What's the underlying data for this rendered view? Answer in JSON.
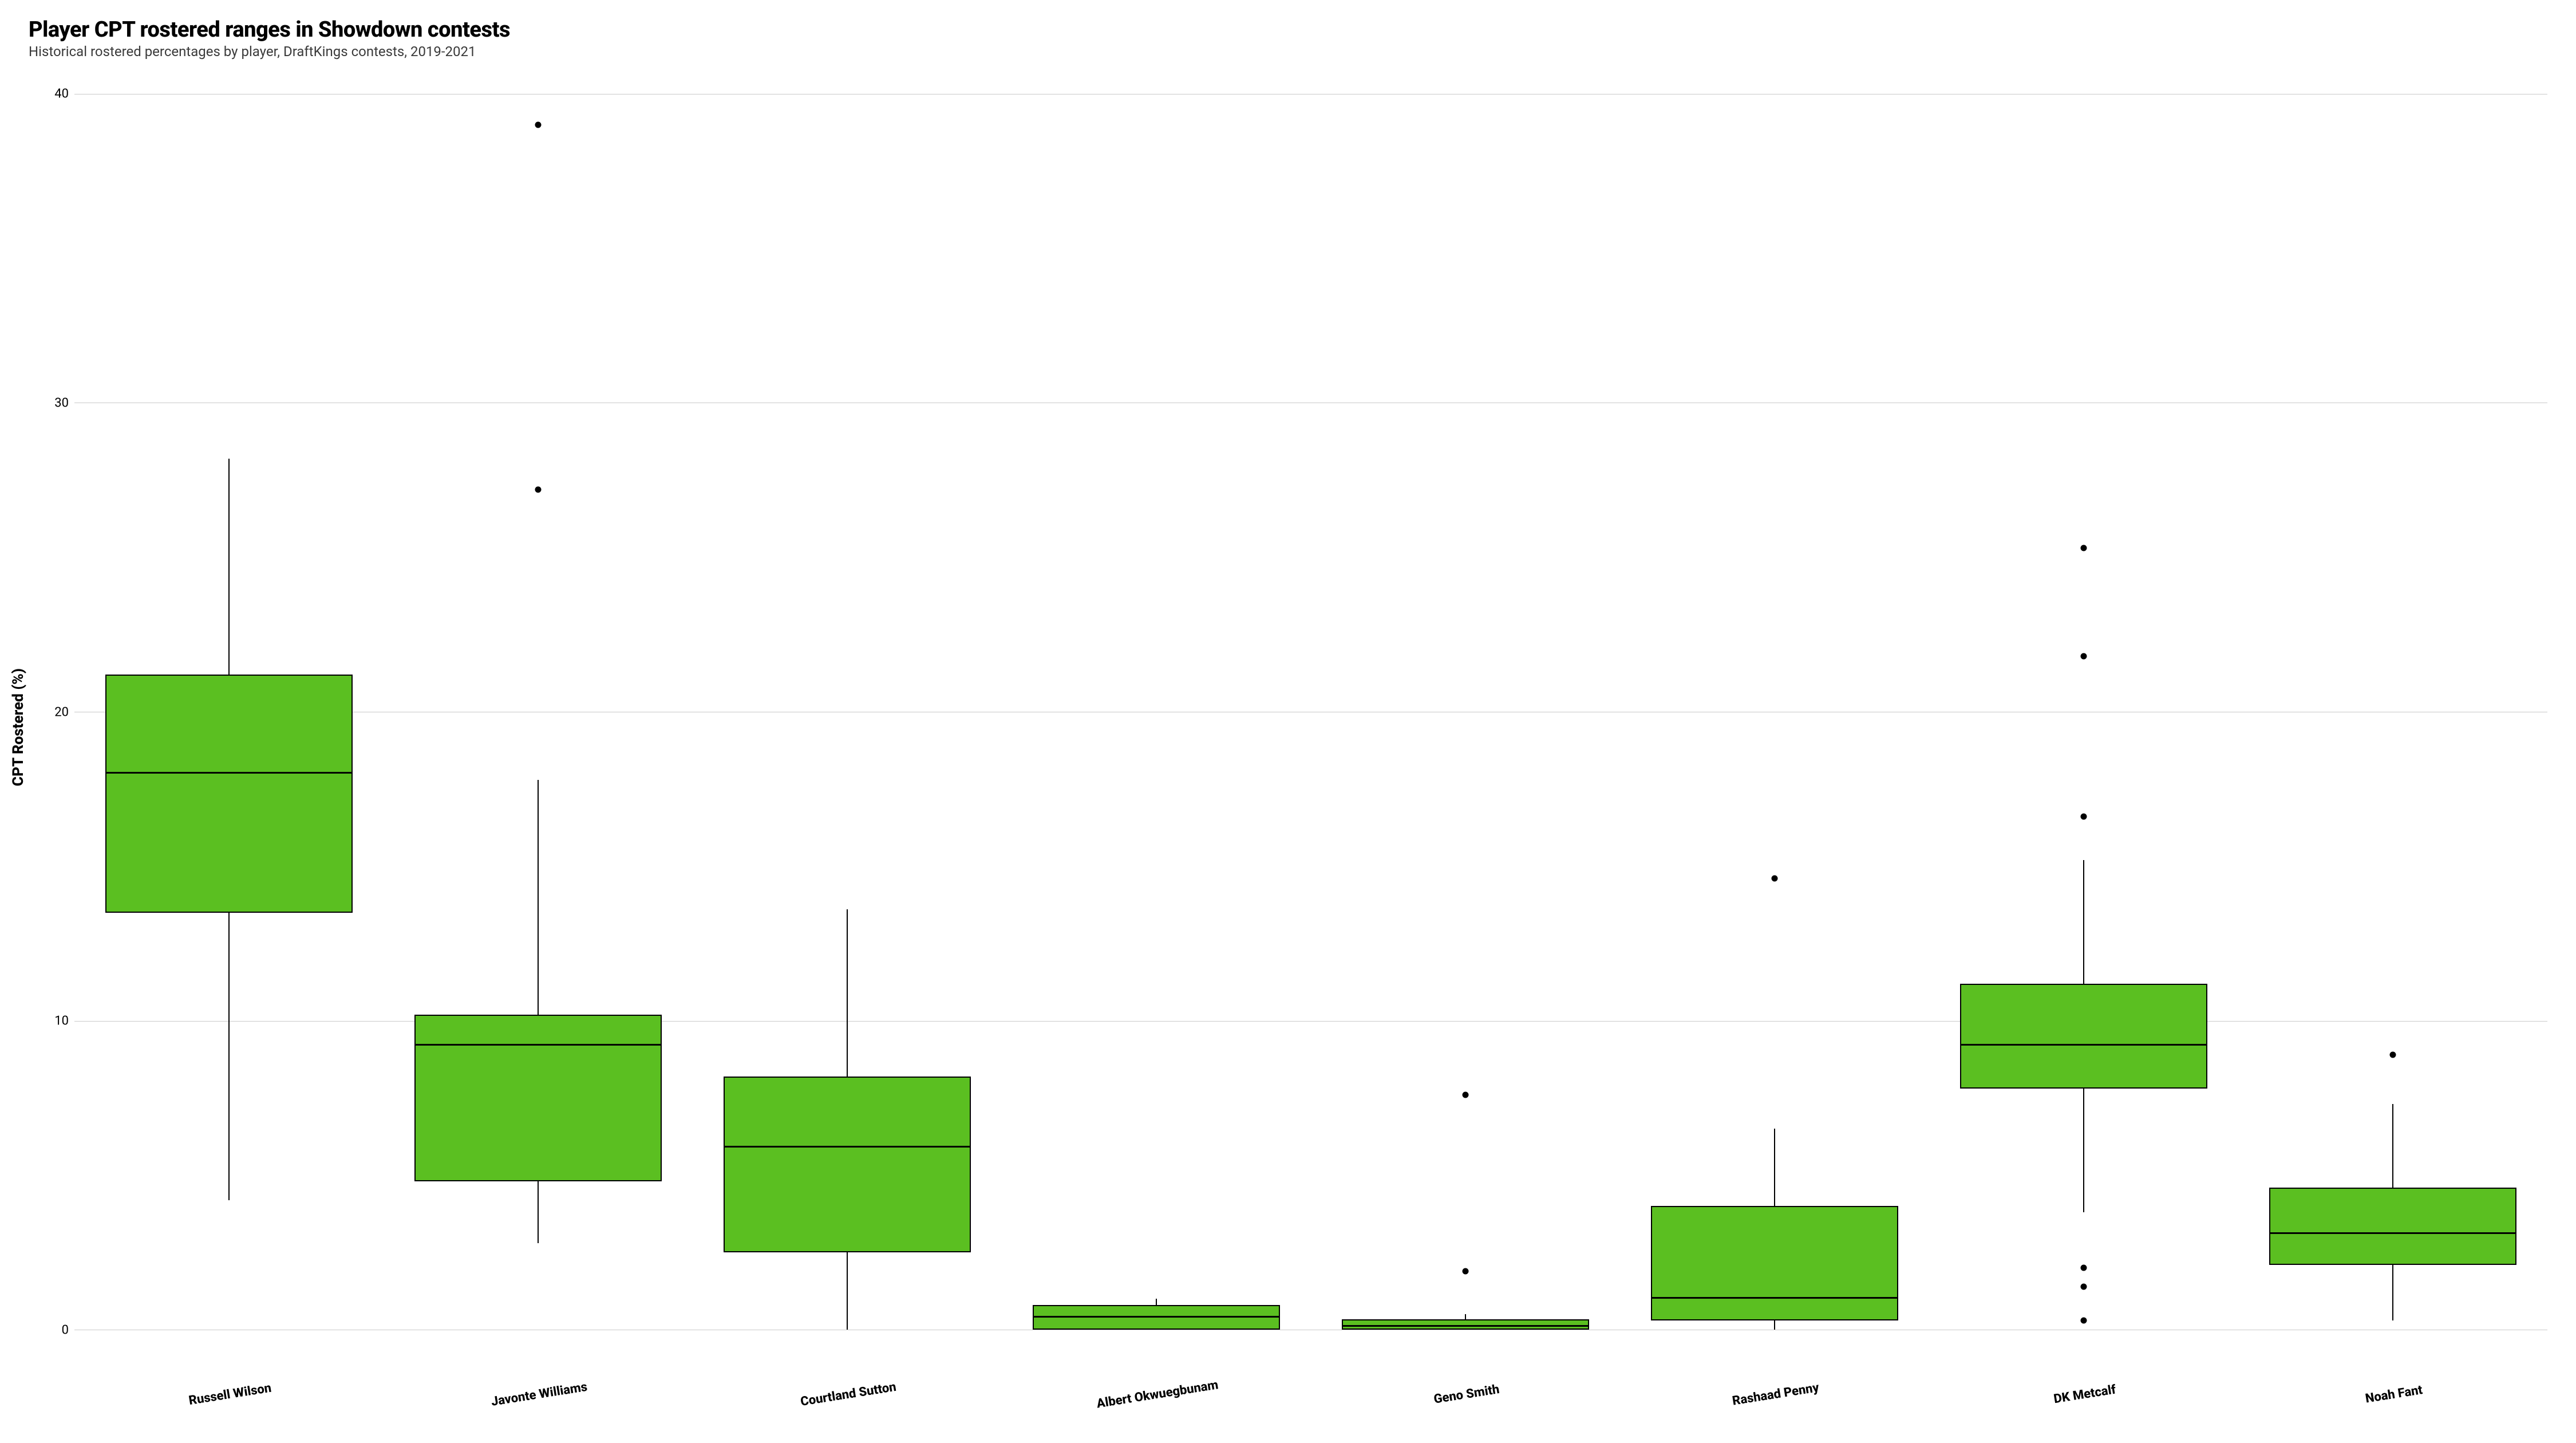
{
  "chart": {
    "type": "boxplot",
    "title": "Player CPT rostered ranges in Showdown contests",
    "subtitle": "Historical rostered percentages by player, DraftKings contests, 2019-2021",
    "title_fontsize": 38,
    "subtitle_fontsize": 24,
    "ylabel": "CPT Rostered (%)",
    "ylabel_fontsize": 26,
    "tick_fontsize": 22,
    "xlabel_fontsize": 22,
    "background_color": "#ffffff",
    "grid_color": "#c9c9c9",
    "box_fill": "#5bbf21",
    "box_stroke": "#000000",
    "median_color": "#000000",
    "whisker_color": "#000000",
    "outlier_color": "#000000",
    "ylim": [
      -2,
      41
    ],
    "yticks": [
      0,
      10,
      20,
      30,
      40
    ],
    "x_label_rotate_deg": -9,
    "players": [
      {
        "name": "Russell Wilson",
        "q1": 13.5,
        "median": 18.0,
        "q3": 21.2,
        "whisker_lo": 4.2,
        "whisker_hi": 28.2,
        "outliers": []
      },
      {
        "name": "Javonte Williams",
        "q1": 4.8,
        "median": 9.2,
        "q3": 10.2,
        "whisker_lo": 2.8,
        "whisker_hi": 17.8,
        "outliers": [
          27.2,
          39.0
        ]
      },
      {
        "name": "Courtland Sutton",
        "q1": 2.5,
        "median": 5.9,
        "q3": 8.2,
        "whisker_lo": 0.0,
        "whisker_hi": 13.6,
        "outliers": []
      },
      {
        "name": "Albert Okwuegbunam",
        "q1": 0.0,
        "median": 0.4,
        "q3": 0.8,
        "whisker_lo": 0.0,
        "whisker_hi": 1.0,
        "outliers": []
      },
      {
        "name": "Geno Smith",
        "q1": 0.0,
        "median": 0.1,
        "q3": 0.3,
        "whisker_lo": 0.0,
        "whisker_hi": 0.5,
        "outliers": [
          1.9,
          7.6
        ]
      },
      {
        "name": "Rashaad Penny",
        "q1": 0.3,
        "median": 1.0,
        "q3": 4.0,
        "whisker_lo": 0.0,
        "whisker_hi": 6.5,
        "outliers": [
          14.6
        ]
      },
      {
        "name": "DK Metcalf",
        "q1": 7.8,
        "median": 9.2,
        "q3": 11.2,
        "whisker_lo": 3.8,
        "whisker_hi": 15.2,
        "outliers": [
          0.3,
          1.4,
          2.0,
          16.6,
          21.8,
          25.3
        ]
      },
      {
        "name": "Noah Fant",
        "q1": 2.1,
        "median": 3.1,
        "q3": 4.6,
        "whisker_lo": 0.3,
        "whisker_hi": 7.3,
        "outliers": [
          8.9
        ]
      }
    ]
  }
}
